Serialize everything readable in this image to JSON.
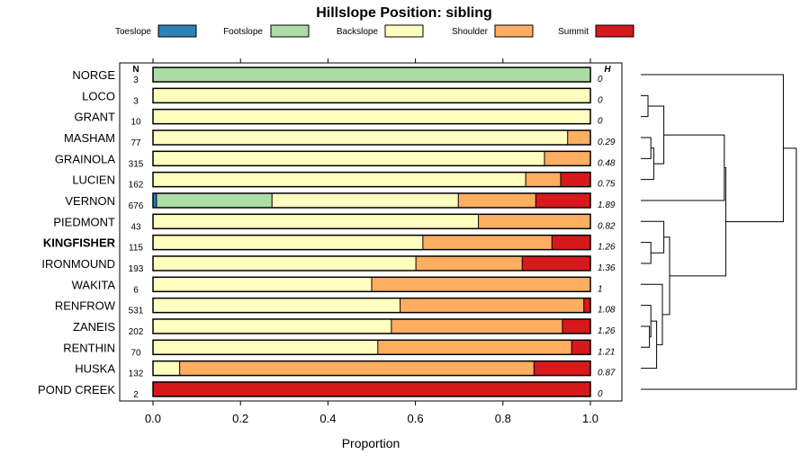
{
  "chart_data": {
    "type": "bar",
    "orientation": "horizontal",
    "stacked": true,
    "title": "Hillslope Position: sibling",
    "xlabel": "Proportion",
    "xlim": [
      0,
      1
    ],
    "x_ticks": [
      "0.0",
      "0.2",
      "0.4",
      "0.6",
      "0.8",
      "1.0"
    ],
    "legend_position": "top",
    "n_header": "N",
    "h_header": "H",
    "categories": [
      "NORGE",
      "LOCO",
      "GRANT",
      "MASHAM",
      "GRAINOLA",
      "LUCIEN",
      "VERNON",
      "PIEDMONT",
      "KINGFISHER",
      "IRONMOUND",
      "WAKITA",
      "RENFROW",
      "ZANEIS",
      "RENTHIN",
      "HUSKA",
      "POND CREEK"
    ],
    "highlighted_category": "KINGFISHER",
    "n": [
      "3",
      "3",
      "10",
      "77",
      "315",
      "162",
      "676",
      "43",
      "115",
      "193",
      "6",
      "531",
      "202",
      "70",
      "132",
      "2"
    ],
    "h": [
      "0",
      "0",
      "0",
      "0.29",
      "0.48",
      "0.75",
      "1.89",
      "0.82",
      "1.26",
      "1.36",
      "1",
      "1.08",
      "1.26",
      "1.21",
      "0.87",
      "0"
    ],
    "series": [
      {
        "name": "Toeslope",
        "color": "#2b83ba",
        "values": [
          0,
          0,
          0,
          0,
          0,
          0,
          0.008,
          0,
          0,
          0,
          0,
          0,
          0,
          0,
          0,
          0
        ]
      },
      {
        "name": "Footslope",
        "color": "#abdda4",
        "values": [
          1,
          0,
          0,
          0,
          0,
          0,
          0.264,
          0,
          0,
          0,
          0,
          0,
          0,
          0,
          0,
          0
        ]
      },
      {
        "name": "Backslope",
        "color": "#ffffbf",
        "values": [
          0,
          1,
          1,
          0.948,
          0.895,
          0.852,
          0.426,
          0.744,
          0.617,
          0.601,
          0.5,
          0.565,
          0.545,
          0.514,
          0.061,
          0
        ]
      },
      {
        "name": "Shoulder",
        "color": "#fdae61",
        "values": [
          0,
          0,
          0,
          0.052,
          0.105,
          0.08,
          0.177,
          0.256,
          0.295,
          0.243,
          0.5,
          0.42,
          0.391,
          0.443,
          0.81,
          0
        ]
      },
      {
        "name": "Summit",
        "color": "#d7191c",
        "values": [
          0,
          0,
          0,
          0,
          0,
          0.068,
          0.125,
          0,
          0.088,
          0.156,
          0,
          0.015,
          0.064,
          0.043,
          0.129,
          1
        ]
      }
    ],
    "dendrogram": {
      "order": [
        "NORGE",
        "LOCO",
        "GRANT",
        "MASHAM",
        "GRAINOLA",
        "LUCIEN",
        "VERNON",
        "PIEDMONT",
        "KINGFISHER",
        "IRONMOUND",
        "WAKITA",
        "RENFROW",
        "ZANEIS",
        "RENTHIN",
        "HUSKA",
        "POND CREEK"
      ],
      "merges": [
        {
          "a": 1,
          "b": 2,
          "height": 0.05
        },
        {
          "a": 3,
          "b": 4,
          "height": 0.07
        },
        {
          "a": -2,
          "b": 5,
          "height": 0.09
        },
        {
          "a": -1,
          "b": -3,
          "height": 0.16
        },
        {
          "a": 12,
          "b": 13,
          "height": 0.06
        },
        {
          "a": 11,
          "b": -5,
          "height": 0.07
        },
        {
          "a": -6,
          "b": 14,
          "height": 0.11
        },
        {
          "a": 10,
          "b": -7,
          "height": 0.15
        },
        {
          "a": 8,
          "b": 9,
          "height": 0.07
        },
        {
          "a": 7,
          "b": -9,
          "height": 0.16
        },
        {
          "a": -10,
          "b": -8,
          "height": 0.2
        },
        {
          "a": -4,
          "b": 6,
          "height": 0.58
        },
        {
          "a": -12,
          "b": -11,
          "height": 0.59
        },
        {
          "a": 0,
          "b": -13,
          "height": 0.99
        },
        {
          "a": -14,
          "b": 15,
          "height": 1.08
        }
      ],
      "max_height": 1.1
    }
  }
}
